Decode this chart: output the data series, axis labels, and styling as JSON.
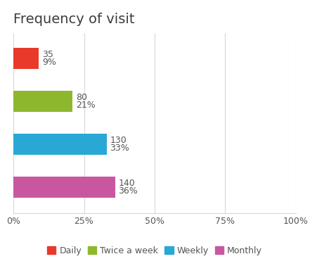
{
  "title": "Frequency of visit",
  "categories": [
    "Daily",
    "Twice a week",
    "Weekly",
    "Monthly"
  ],
  "values": [
    9,
    21,
    33,
    36
  ],
  "counts": [
    35,
    80,
    130,
    140
  ],
  "percentages": [
    "9%",
    "21%",
    "33%",
    "36%"
  ],
  "colors": [
    "#e8392a",
    "#8db82e",
    "#29a8d5",
    "#c957a0"
  ],
  "xlim": [
    0,
    100
  ],
  "xticks": [
    0,
    25,
    50,
    75,
    100
  ],
  "xtick_labels": [
    "0%",
    "25%",
    "50%",
    "75%",
    "100%"
  ],
  "title_color": "#3d3d3d",
  "title_fontsize": 14,
  "label_fontsize": 9,
  "tick_fontsize": 9,
  "legend_fontsize": 9,
  "bar_height": 0.5,
  "background_color": "#ffffff",
  "grid_color": "#d8d8d8",
  "annotation_color": "#555555"
}
